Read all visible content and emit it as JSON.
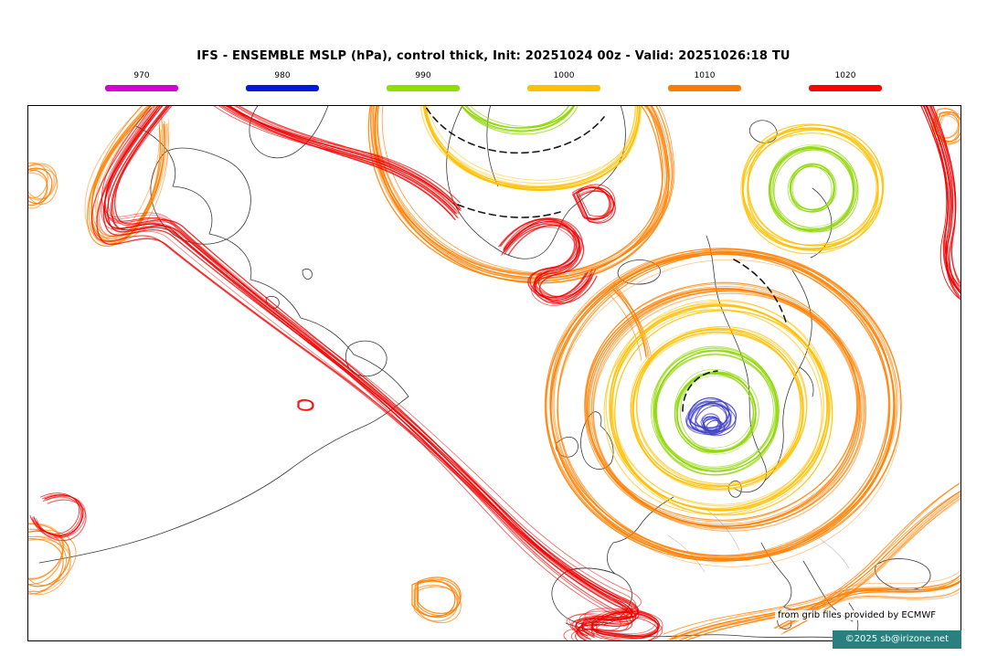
{
  "header": {
    "title": "IFS - ENSEMBLE MSLP (hPa), control thick, Init: 20251024 00z - Valid: 20251026:18 TU"
  },
  "legend": {
    "items": [
      {
        "label": "970",
        "color": "#d400d4"
      },
      {
        "label": "980",
        "color": "#0018e0"
      },
      {
        "label": "990",
        "color": "#8ce000"
      },
      {
        "label": "1000",
        "color": "#ffc000"
      },
      {
        "label": "1010",
        "color": "#ff7a00"
      },
      {
        "label": "1020",
        "color": "#ff0000"
      }
    ]
  },
  "map": {
    "credit1": "from grib files provided by ECMWF",
    "credit2": "©2025 sb@irizone.net",
    "credit2_bg": "#2a7f7f",
    "contour_colors": {
      "mslp_980": "#3b3bc8",
      "mslp_990": "#8cd600",
      "mslp_1000": "#ffc000",
      "mslp_1010": "#ff7f00",
      "mslp_1020": "#ee0000",
      "control": "#000000"
    }
  }
}
